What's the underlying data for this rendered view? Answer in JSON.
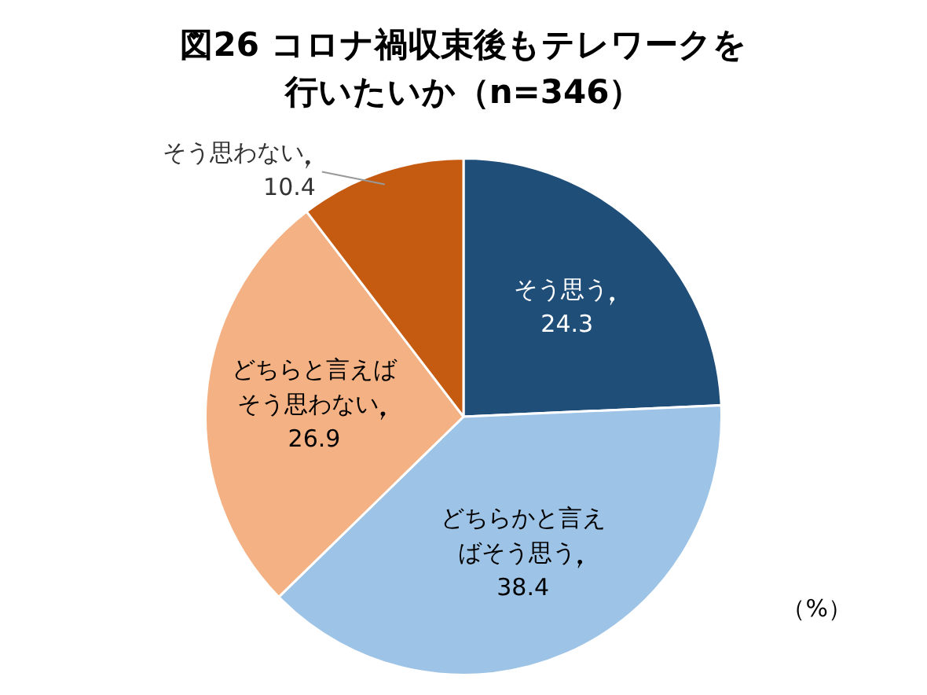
{
  "chart_data": {
    "type": "pie",
    "title": "図26 コロナ禍収束後もテレワークを行いたいか（n=346）",
    "categories": [
      "そう思う",
      "どちらかと言えばそう思う",
      "どちらと言えばそう思わない",
      "そう思わない"
    ],
    "values": [
      24.3,
      38.4,
      26.9,
      10.4
    ],
    "colors": [
      "#1f4e79",
      "#9dc3e6",
      "#f4b183",
      "#c55a11"
    ],
    "data_labels": true,
    "legend": false,
    "annotations": [
      "（%）"
    ]
  }
}
